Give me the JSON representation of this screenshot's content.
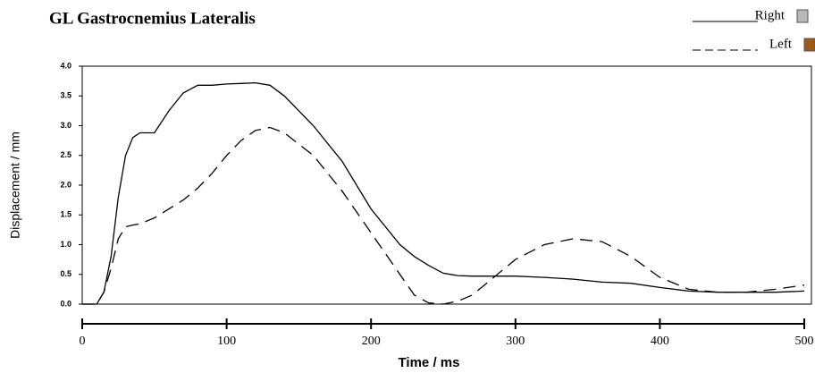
{
  "chart_data": {
    "type": "line",
    "title": "GL Gastrocnemius Lateralis",
    "x_label": "Time / ms",
    "y_label": "Displacement / mm",
    "x": [
      0,
      10,
      15,
      20,
      25,
      30,
      35,
      40,
      50,
      60,
      70,
      80,
      90,
      100,
      110,
      120,
      130,
      140,
      160,
      180,
      200,
      220,
      230,
      240,
      250,
      260,
      270,
      280,
      300,
      320,
      340,
      360,
      380,
      400,
      420,
      440,
      460,
      480,
      500
    ],
    "series": [
      {
        "name": "Right",
        "color": "#000000",
        "dash": "none",
        "marker_color": "#b8b8b8",
        "values": [
          0,
          0,
          0.2,
          0.8,
          1.8,
          2.5,
          2.8,
          2.88,
          2.88,
          3.25,
          3.55,
          3.68,
          3.68,
          3.7,
          3.71,
          3.72,
          3.68,
          3.5,
          3.0,
          2.4,
          1.6,
          1.0,
          0.8,
          0.65,
          0.52,
          0.48,
          0.47,
          0.47,
          0.47,
          0.45,
          0.42,
          0.37,
          0.35,
          0.28,
          0.22,
          0.2,
          0.2,
          0.2,
          0.22
        ]
      },
      {
        "name": "Left",
        "color": "#000000",
        "dash": "14 8",
        "marker_color": "#9a5a1c",
        "values": [
          0,
          0,
          0.2,
          0.6,
          1.1,
          1.3,
          1.33,
          1.35,
          1.45,
          1.6,
          1.75,
          1.95,
          2.2,
          2.5,
          2.75,
          2.92,
          2.97,
          2.88,
          2.5,
          1.9,
          1.2,
          0.5,
          0.15,
          0.02,
          0,
          0.05,
          0.15,
          0.35,
          0.75,
          1.0,
          1.1,
          1.05,
          0.8,
          0.45,
          0.25,
          0.2,
          0.2,
          0.25,
          0.32
        ]
      }
    ],
    "xlim": [
      0,
      500
    ],
    "xticks": [
      0,
      100,
      200,
      300,
      400,
      500
    ],
    "ylim": [
      0,
      4
    ],
    "yticks": [
      {
        "value": 0,
        "label": "0.0"
      },
      0.5,
      {
        "value": 1,
        "label": "1.0"
      },
      1.5,
      {
        "value": 2,
        "label": "2.0"
      },
      2.5,
      {
        "value": 3,
        "label": "3.0"
      },
      3.5,
      {
        "value": 4,
        "label": "4.0"
      }
    ],
    "legend": "top-right"
  }
}
